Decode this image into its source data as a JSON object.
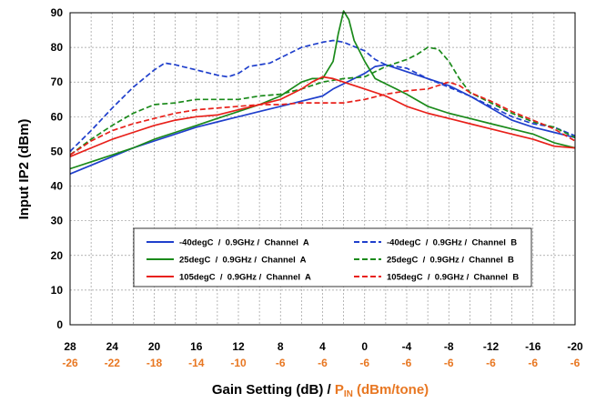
{
  "chart_data": {
    "type": "line",
    "title": "",
    "ylabel": "Input IP2 (dBm)",
    "xlabel": {
      "main": "Gain Setting (dB) / ",
      "pin_p": "P",
      "pin_sub": "IN",
      "pin_rest": " (dBm/tone)"
    },
    "ylim": [
      0,
      90
    ],
    "yticks": [
      0,
      10,
      20,
      30,
      40,
      50,
      60,
      70,
      80,
      90
    ],
    "xlim": [
      28,
      -20
    ],
    "xticks": [
      28,
      24,
      20,
      16,
      12,
      8,
      4,
      0,
      -4,
      -8,
      -12,
      -16,
      -20
    ],
    "pin_ticks": [
      "-26",
      "-22",
      "-18",
      "-14",
      "-10",
      "-6",
      "-6",
      "-6",
      "-6",
      "-6",
      "-6",
      "-6",
      "-6"
    ],
    "grid": true,
    "legend_placement": "lower-center",
    "colors": {
      "blue": "#1f3fcc",
      "green": "#1a8a1a",
      "red": "#e8201a",
      "pin": "#e87722"
    },
    "series": [
      {
        "name": "-40degC  /  0.9GHz /  Channel  A",
        "color": "#1f3fcc",
        "dash": false,
        "points": [
          [
            28,
            43.5
          ],
          [
            26,
            46
          ],
          [
            24,
            48.5
          ],
          [
            22,
            51
          ],
          [
            20,
            53
          ],
          [
            18,
            55
          ],
          [
            16,
            57
          ],
          [
            14,
            58.5
          ],
          [
            12,
            60
          ],
          [
            10,
            61.5
          ],
          [
            8,
            63
          ],
          [
            6,
            64.5
          ],
          [
            4,
            66
          ],
          [
            3,
            68
          ],
          [
            2,
            69.5
          ],
          [
            1,
            71
          ],
          [
            0,
            72.5
          ],
          [
            -1,
            74.5
          ],
          [
            -2,
            75
          ],
          [
            -4,
            73
          ],
          [
            -6,
            71
          ],
          [
            -8,
            69
          ],
          [
            -10,
            66
          ],
          [
            -12,
            62.5
          ],
          [
            -14,
            59
          ],
          [
            -16,
            57
          ],
          [
            -18,
            55.5
          ],
          [
            -20,
            54
          ]
        ]
      },
      {
        "name": "-40degC  /  0.9GHz /  Channel  B",
        "color": "#1f3fcc",
        "dash": true,
        "points": [
          [
            28,
            50
          ],
          [
            26,
            56
          ],
          [
            24,
            62.5
          ],
          [
            22,
            68.5
          ],
          [
            20,
            73.5
          ],
          [
            19,
            75.5
          ],
          [
            18,
            75
          ],
          [
            16,
            73.5
          ],
          [
            14,
            72
          ],
          [
            13,
            71.5
          ],
          [
            12,
            72.5
          ],
          [
            11,
            74.5
          ],
          [
            10,
            75
          ],
          [
            9,
            75.5
          ],
          [
            8,
            77
          ],
          [
            6,
            80
          ],
          [
            4,
            81.5
          ],
          [
            3,
            82
          ],
          [
            2,
            81.5
          ],
          [
            0,
            79
          ],
          [
            -1,
            76.5
          ],
          [
            -2,
            75
          ],
          [
            -4,
            74
          ],
          [
            -6,
            71
          ],
          [
            -8,
            68.5
          ],
          [
            -10,
            66
          ],
          [
            -12,
            63
          ],
          [
            -14,
            60
          ],
          [
            -16,
            58
          ],
          [
            -18,
            57
          ],
          [
            -20,
            54.5
          ]
        ]
      },
      {
        "name": "25degC  /  0.9GHz /  Channel  A",
        "color": "#1a8a1a",
        "dash": false,
        "points": [
          [
            28,
            45
          ],
          [
            26,
            47
          ],
          [
            24,
            49
          ],
          [
            22,
            51
          ],
          [
            20,
            53.5
          ],
          [
            18,
            55.5
          ],
          [
            16,
            57.5
          ],
          [
            14,
            59.5
          ],
          [
            12,
            61.5
          ],
          [
            10,
            63.5
          ],
          [
            8,
            66
          ],
          [
            7,
            68
          ],
          [
            6,
            70
          ],
          [
            5,
            71
          ],
          [
            4,
            71
          ],
          [
            3,
            76
          ],
          [
            2.5,
            84
          ],
          [
            2,
            90.5
          ],
          [
            1.5,
            88
          ],
          [
            1,
            82
          ],
          [
            0,
            76
          ],
          [
            -1,
            71
          ],
          [
            -2,
            69.5
          ],
          [
            -3,
            68
          ],
          [
            -4,
            66.5
          ],
          [
            -6,
            63
          ],
          [
            -8,
            61
          ],
          [
            -10,
            59.5
          ],
          [
            -12,
            58
          ],
          [
            -14,
            56.5
          ],
          [
            -16,
            55
          ],
          [
            -18,
            52.5
          ],
          [
            -20,
            51
          ]
        ]
      },
      {
        "name": "25degC  /  0.9GHz /  Channel  B",
        "color": "#1a8a1a",
        "dash": true,
        "points": [
          [
            28,
            49
          ],
          [
            26,
            53.5
          ],
          [
            24,
            57.5
          ],
          [
            22,
            61
          ],
          [
            20,
            63.5
          ],
          [
            18,
            64
          ],
          [
            16,
            65
          ],
          [
            14,
            65
          ],
          [
            12,
            65
          ],
          [
            10,
            66
          ],
          [
            8,
            66.5
          ],
          [
            6,
            68
          ],
          [
            4,
            70
          ],
          [
            2,
            71
          ],
          [
            0,
            71.5
          ],
          [
            -2,
            74.5
          ],
          [
            -4,
            76.5
          ],
          [
            -5,
            78
          ],
          [
            -6,
            80
          ],
          [
            -7,
            79.5
          ],
          [
            -8,
            76
          ],
          [
            -9,
            71
          ],
          [
            -10,
            67
          ],
          [
            -12,
            64
          ],
          [
            -14,
            61
          ],
          [
            -16,
            58.5
          ],
          [
            -18,
            57
          ],
          [
            -20,
            54
          ]
        ]
      },
      {
        "name": "105degC  /  0.9GHz /  Channel  A",
        "color": "#e8201a",
        "dash": false,
        "points": [
          [
            28,
            48.5
          ],
          [
            26,
            51
          ],
          [
            24,
            53.5
          ],
          [
            22,
            55.5
          ],
          [
            20,
            57.5
          ],
          [
            18,
            59
          ],
          [
            16,
            60
          ],
          [
            14,
            60.5
          ],
          [
            12,
            62
          ],
          [
            10,
            63.5
          ],
          [
            8,
            65
          ],
          [
            6,
            68
          ],
          [
            5,
            70
          ],
          [
            4,
            71.5
          ],
          [
            3,
            71
          ],
          [
            2,
            70
          ],
          [
            0,
            68
          ],
          [
            -2,
            66
          ],
          [
            -4,
            63
          ],
          [
            -6,
            61
          ],
          [
            -8,
            59.5
          ],
          [
            -10,
            58
          ],
          [
            -12,
            56.5
          ],
          [
            -14,
            55
          ],
          [
            -16,
            53.5
          ],
          [
            -18,
            51.5
          ],
          [
            -20,
            51
          ]
        ]
      },
      {
        "name": "105degC  /  0.9GHz /  Channel  B",
        "color": "#e8201a",
        "dash": true,
        "points": [
          [
            28,
            49
          ],
          [
            26,
            53
          ],
          [
            24,
            56
          ],
          [
            22,
            58
          ],
          [
            20,
            59.5
          ],
          [
            18,
            61
          ],
          [
            16,
            62
          ],
          [
            14,
            62.5
          ],
          [
            12,
            63
          ],
          [
            10,
            63.5
          ],
          [
            8,
            63.5
          ],
          [
            6,
            64
          ],
          [
            4,
            64
          ],
          [
            2,
            64
          ],
          [
            0,
            65
          ],
          [
            -2,
            66.5
          ],
          [
            -4,
            67.5
          ],
          [
            -6,
            68
          ],
          [
            -7,
            69
          ],
          [
            -8,
            70
          ],
          [
            -9,
            69
          ],
          [
            -10,
            67
          ],
          [
            -12,
            64.5
          ],
          [
            -14,
            61.5
          ],
          [
            -16,
            59
          ],
          [
            -18,
            56.5
          ],
          [
            -20,
            53
          ]
        ]
      }
    ]
  }
}
